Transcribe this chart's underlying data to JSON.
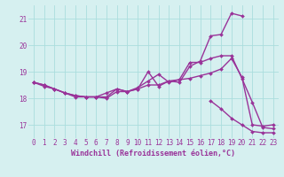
{
  "xlabel": "Windchill (Refroidissement éolien,°C)",
  "x": [
    0,
    1,
    2,
    3,
    4,
    5,
    6,
    7,
    8,
    9,
    10,
    11,
    12,
    13,
    14,
    15,
    16,
    17,
    18,
    19,
    20,
    21,
    22,
    23
  ],
  "line1": [
    18.6,
    18.5,
    18.35,
    18.2,
    18.1,
    18.05,
    18.05,
    18.2,
    18.35,
    18.25,
    18.35,
    18.5,
    18.5,
    18.65,
    18.7,
    18.75,
    18.85,
    18.95,
    19.1,
    19.5,
    18.8,
    17.0,
    16.95,
    17.0
  ],
  "line2": [
    18.6,
    18.5,
    18.35,
    18.2,
    18.05,
    18.05,
    18.05,
    18.05,
    18.35,
    18.25,
    18.35,
    19.0,
    18.45,
    18.65,
    18.6,
    19.2,
    19.4,
    20.35,
    20.4,
    21.2,
    21.1,
    null,
    null,
    null
  ],
  "line3": [
    18.6,
    18.45,
    18.35,
    18.2,
    18.1,
    18.05,
    18.05,
    18.0,
    18.25,
    18.25,
    18.4,
    18.65,
    18.9,
    18.6,
    18.7,
    19.35,
    19.35,
    19.5,
    19.6,
    19.6,
    18.75,
    17.85,
    16.9,
    16.85
  ],
  "line4": [
    18.6,
    null,
    null,
    null,
    null,
    null,
    null,
    null,
    null,
    null,
    null,
    null,
    null,
    null,
    null,
    null,
    null,
    17.9,
    17.6,
    17.25,
    17.0,
    16.75,
    16.7,
    16.7
  ],
  "ylim": [
    16.5,
    21.5
  ],
  "xlim": [
    -0.5,
    23.5
  ],
  "yticks": [
    17,
    18,
    19,
    20,
    21
  ],
  "xticks": [
    0,
    1,
    2,
    3,
    4,
    5,
    6,
    7,
    8,
    9,
    10,
    11,
    12,
    13,
    14,
    15,
    16,
    17,
    18,
    19,
    20,
    21,
    22,
    23
  ],
  "line_color": "#993399",
  "bg_color": "#d6f0f0",
  "grid_color": "#aadddd",
  "marker": "D",
  "markersize": 2.0,
  "linewidth": 1.0,
  "tick_fontsize": 5.5,
  "label_fontsize": 6.0
}
